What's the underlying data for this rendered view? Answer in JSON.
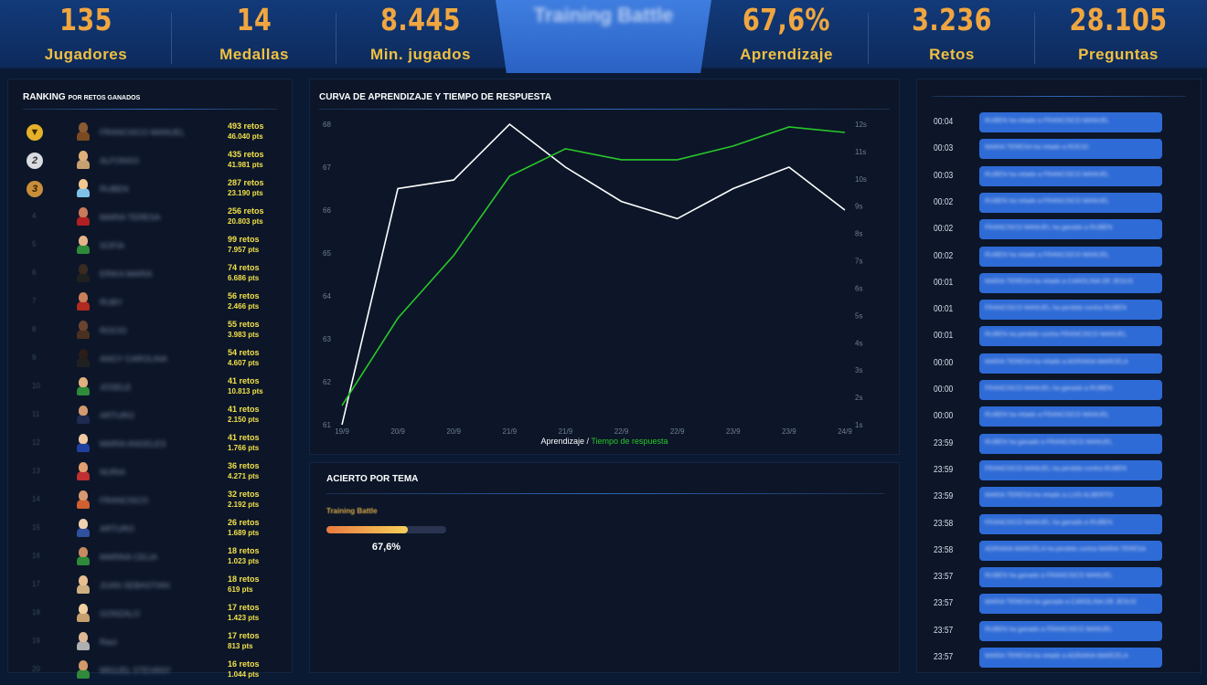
{
  "stats": [
    {
      "value": "135",
      "label": "Jugadores"
    },
    {
      "value": "14",
      "label": "Medallas"
    },
    {
      "value": "8.445",
      "label": "Min. jugados"
    },
    {
      "value": "67,6%",
      "label": "Aprendizaje"
    },
    {
      "value": "3.236",
      "label": "Retos"
    },
    {
      "value": "28.105",
      "label": "Preguntas"
    }
  ],
  "center_tab": {
    "label": "Training Battle"
  },
  "ranking": {
    "title": "RANKING",
    "subtitle": "POR RETOS GANADOS",
    "rows": [
      {
        "pos": "1",
        "name": "FRANCISCO MANUEL",
        "retos": "493 retos",
        "pts": "46.040 pts"
      },
      {
        "pos": "2",
        "name": "ALFONSO",
        "retos": "435 retos",
        "pts": "41.981 pts"
      },
      {
        "pos": "3",
        "name": "RUBEN",
        "retos": "287 retos",
        "pts": "23.190 pts"
      },
      {
        "pos": "4",
        "name": "MARIA TERESA",
        "retos": "256 retos",
        "pts": "20.803 pts"
      },
      {
        "pos": "5",
        "name": "SOFIA",
        "retos": "99 retos",
        "pts": "7.957 pts"
      },
      {
        "pos": "6",
        "name": "ERIKA MARIA",
        "retos": "74 retos",
        "pts": "6.686 pts"
      },
      {
        "pos": "7",
        "name": "RUBY",
        "retos": "56 retos",
        "pts": "2.466 pts"
      },
      {
        "pos": "8",
        "name": "ROCIO",
        "retos": "55 retos",
        "pts": "3.983 pts"
      },
      {
        "pos": "9",
        "name": "ANGY CAROLINA",
        "retos": "54 retos",
        "pts": "4.607 pts"
      },
      {
        "pos": "10",
        "name": "JOSELE",
        "retos": "41 retos",
        "pts": "10.813 pts"
      },
      {
        "pos": "11",
        "name": "ARTURO",
        "retos": "41 retos",
        "pts": "2.150 pts"
      },
      {
        "pos": "12",
        "name": "MARIA ANGELES",
        "retos": "41 retos",
        "pts": "1.766 pts"
      },
      {
        "pos": "13",
        "name": "NURIA",
        "retos": "36 retos",
        "pts": "4.271 pts"
      },
      {
        "pos": "14",
        "name": "FRANCISCO",
        "retos": "32 retos",
        "pts": "2.192 pts"
      },
      {
        "pos": "15",
        "name": "ARTURO",
        "retos": "26 retos",
        "pts": "1.689 pts"
      },
      {
        "pos": "16",
        "name": "MARINA CELIA",
        "retos": "18 retos",
        "pts": "1.023 pts"
      },
      {
        "pos": "17",
        "name": "JUAN SEBASTIAN",
        "retos": "18 retos",
        "pts": "619 pts"
      },
      {
        "pos": "18",
        "name": "GONZALO",
        "retos": "17 retos",
        "pts": "1.423 pts"
      },
      {
        "pos": "19",
        "name": "Raul",
        "retos": "17 retos",
        "pts": "813 pts"
      },
      {
        "pos": "20",
        "name": "MIGUEL STEVANY",
        "retos": "16 retos",
        "pts": "1.044 pts"
      }
    ]
  },
  "curve": {
    "title": "CURVA DE APRENDIZAJE Y TIEMPO DE RESPUESTA",
    "legend_a": "Aprendizaje",
    "legend_sep": " / ",
    "legend_b": "Tiempo de respuesta"
  },
  "chart_data": {
    "type": "line",
    "x": [
      "19/9",
      "20/9",
      "20/9",
      "21/9",
      "21/9",
      "22/9",
      "22/9",
      "23/9",
      "23/9",
      "24/9"
    ],
    "series": [
      {
        "name": "Aprendizaje",
        "axis": "left",
        "values": [
          61.0,
          66.5,
          66.7,
          68.0,
          67.0,
          66.2,
          65.8,
          66.5,
          67.0,
          66.0
        ]
      },
      {
        "name": "Tiempo de respuesta",
        "axis": "right",
        "values": [
          1.7,
          4.9,
          7.2,
          10.1,
          11.1,
          10.7,
          10.7,
          11.2,
          11.9,
          11.7
        ]
      }
    ],
    "y_left": {
      "ticks": [
        "61",
        "62",
        "63",
        "64",
        "65",
        "66",
        "67",
        "68"
      ],
      "lim": [
        61,
        68
      ]
    },
    "y_right": {
      "ticks": [
        "1s",
        "2s",
        "3s",
        "4s",
        "5s",
        "6s",
        "7s",
        "8s",
        "9s",
        "10s",
        "11s",
        "12s"
      ],
      "lim": [
        1,
        12
      ]
    },
    "colors": {
      "Aprendizaje": "#ffffff",
      "Tiempo de respuesta": "#29c829"
    },
    "grid": false,
    "legend": "bottom"
  },
  "acierto": {
    "title": "ACIERTO POR TEMA",
    "topic": "Training Battle",
    "percent_label": "67,6%",
    "fraction": 0.676
  },
  "feed": [
    {
      "time": "00:04",
      "text": "RUBEN ha retado a FRANCISCO MANUEL"
    },
    {
      "time": "00:03",
      "text": "MARIA TERESA ha retado a ROCIO"
    },
    {
      "time": "00:03",
      "text": "RUBEN ha retado a FRANCISCO MANUEL"
    },
    {
      "time": "00:02",
      "text": "RUBEN ha retado a FRANCISCO MANUEL"
    },
    {
      "time": "00:02",
      "text": "FRANCISCO MANUEL ha ganado a RUBEN"
    },
    {
      "time": "00:02",
      "text": "RUBEN ha retado a FRANCISCO MANUEL"
    },
    {
      "time": "00:01",
      "text": "MARIA TERESA ha retado a CAROLINA DE JESUS"
    },
    {
      "time": "00:01",
      "text": "FRANCISCO MANUEL ha perdido contra RUBEN"
    },
    {
      "time": "00:01",
      "text": "RUBEN ha perdido contra FRANCISCO MANUEL"
    },
    {
      "time": "00:00",
      "text": "MARIA TERESA ha retado a ADRIANA MARCELA"
    },
    {
      "time": "00:00",
      "text": "FRANCISCO MANUEL ha ganado a RUBEN"
    },
    {
      "time": "00:00",
      "text": "RUBEN ha retado a FRANCISCO MANUEL"
    },
    {
      "time": "23:59",
      "text": "RUBEN ha ganado a FRANCISCO MANUEL"
    },
    {
      "time": "23:59",
      "text": "FRANCISCO MANUEL ha perdido contra RUBEN"
    },
    {
      "time": "23:59",
      "text": "MARIA TERESA ha retado a LUIS ALBERTO"
    },
    {
      "time": "23:58",
      "text": "FRANCISCO MANUEL ha ganado a RUBEN"
    },
    {
      "time": "23:58",
      "text": "ADRIANA MARCELA ha perdido contra MARIA TERESA"
    },
    {
      "time": "23:57",
      "text": "RUBEN ha ganado a FRANCISCO MANUEL"
    },
    {
      "time": "23:57",
      "text": "MARIA TERESA ha ganado a CAROLINA DE JESUS"
    },
    {
      "time": "23:57",
      "text": "RUBEN ha ganado a FRANCISCO MANUEL"
    },
    {
      "time": "23:57",
      "text": "MARIA TERESA ha retado a ADRIANA MARCELA"
    }
  ]
}
